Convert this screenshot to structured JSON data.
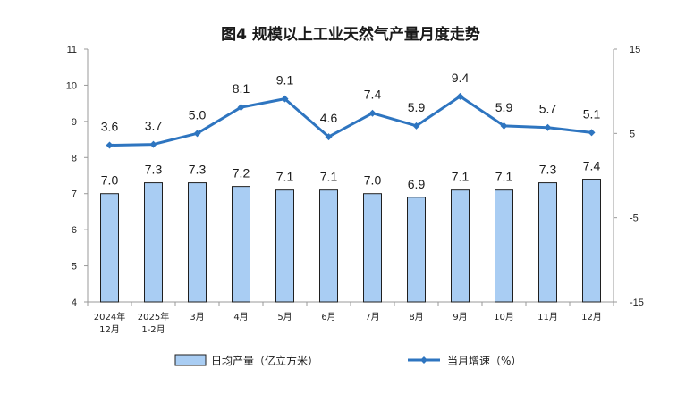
{
  "chart_data": {
    "type": "bar",
    "title": "图4  规模以上工业天然气产量月度走势",
    "categories": [
      [
        "2024年",
        "12月"
      ],
      [
        "2025年",
        "1-2月"
      ],
      [
        "3月"
      ],
      [
        "4月"
      ],
      [
        "5月"
      ],
      [
        "6月"
      ],
      [
        "7月"
      ],
      [
        "8月"
      ],
      [
        "9月"
      ],
      [
        "10月"
      ],
      [
        "11月"
      ],
      [
        "12月"
      ]
    ],
    "series": [
      {
        "name": "日均产量（亿立方米）",
        "type": "bar",
        "axis": "left",
        "color": "#a9cdf3",
        "values": [
          7.0,
          7.3,
          7.3,
          7.2,
          7.1,
          7.1,
          7.0,
          6.9,
          7.1,
          7.1,
          7.3,
          7.4
        ]
      },
      {
        "name": "当月增速（%）",
        "type": "line",
        "axis": "right",
        "color": "#2e75c0",
        "values": [
          3.6,
          3.7,
          5.0,
          8.1,
          9.1,
          4.6,
          7.4,
          5.9,
          9.4,
          5.9,
          5.7,
          5.1
        ]
      }
    ],
    "ylim_left": [
      4,
      11
    ],
    "yticks_left": [
      "4",
      "5",
      "6",
      "7",
      "8",
      "9",
      "10",
      "11"
    ],
    "ylim_right": [
      -15,
      15
    ],
    "yticks_right": [
      "-15",
      "-5",
      "5",
      "15"
    ],
    "grid": false,
    "legend_position": "bottom"
  }
}
